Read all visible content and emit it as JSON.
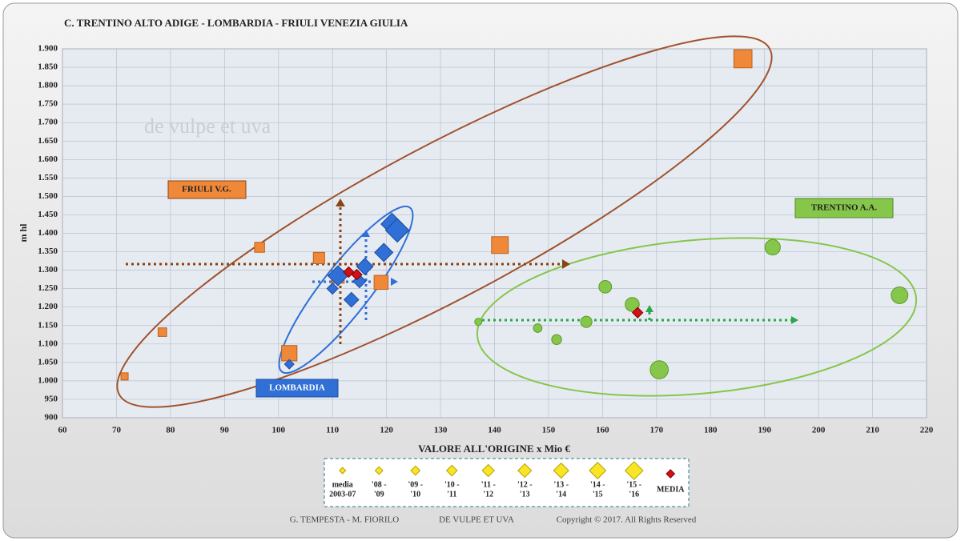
{
  "chart_data": {
    "type": "scatter",
    "title": "C.  TRENTINO ALTO ADIGE - LOMBARDIA - FRIULI VENEZIA GIULIA",
    "x_label": "VALORE ALL'ORIGINE  x Mio €",
    "y_label": "m hl",
    "watermark": "de vulpe et uva",
    "xlim": [
      60,
      220
    ],
    "xticks": [
      60,
      70,
      80,
      90,
      100,
      110,
      120,
      130,
      140,
      150,
      160,
      170,
      180,
      190,
      200,
      210,
      220
    ],
    "ylim": [
      900,
      1900
    ],
    "yticks": [
      900,
      {
        "value": 950,
        "label": "950"
      },
      {
        "value": 1000,
        "label": "1.000"
      },
      {
        "value": 1050,
        "label": "1.050"
      },
      {
        "value": 1100,
        "label": "1.100"
      },
      {
        "value": 1150,
        "label": "1.150"
      },
      {
        "value": 1200,
        "label": "1.200"
      },
      {
        "value": 1250,
        "label": "1.250"
      },
      {
        "value": 1300,
        "label": "1.300"
      },
      {
        "value": 1350,
        "label": "1.350"
      },
      {
        "value": 1400,
        "label": "1.400"
      },
      {
        "value": 1450,
        "label": "1.450"
      },
      {
        "value": 1500,
        "label": "1.500"
      },
      {
        "value": 1550,
        "label": "1.550"
      },
      {
        "value": 1600,
        "label": "1.600"
      },
      {
        "value": 1650,
        "label": "1.650"
      },
      {
        "value": 1700,
        "label": "1.700"
      },
      {
        "value": 1750,
        "label": "1.750"
      },
      {
        "value": 1800,
        "label": "1.800"
      },
      {
        "value": 1850,
        "label": "1.850"
      },
      {
        "value": 1900,
        "label": "1.900"
      }
    ],
    "grid": true,
    "series": [
      {
        "name": "FRIULI V.G.",
        "color": "#f0883a",
        "marker": "square",
        "x": [
          71.5,
          78.5,
          96.5,
          107.5,
          111,
          119,
          102,
          141,
          186
        ],
        "values": [
          1012,
          1132,
          1362,
          1333,
          1282,
          1267,
          1075,
          1368,
          1873
        ]
      },
      {
        "name": "LOMBARDIA",
        "color": "#2f6fd6",
        "marker": "diamond",
        "x": [
          102,
          110,
          115,
          113.5,
          116,
          119.5,
          111,
          121,
          122
        ],
        "values": [
          1045,
          1250,
          1270,
          1220,
          1310,
          1348,
          1285,
          1425,
          1408
        ]
      },
      {
        "name": "TRENTINO A.A.",
        "color": "#86c64a",
        "marker": "circle",
        "x": [
          137,
          148,
          151.5,
          157,
          160.5,
          165.5,
          191.5,
          215,
          170.5
        ],
        "values": [
          1160,
          1143,
          1112,
          1160,
          1255,
          1207,
          1362,
          1232,
          1030
        ]
      },
      {
        "name": "MEDIA",
        "color": "#d0101b",
        "marker": "diamond",
        "x": [
          113,
          114.5,
          166.5
        ],
        "values": [
          1295,
          1288,
          1185
        ]
      }
    ],
    "legend_periods": [
      [
        "media",
        "2003-07"
      ],
      [
        "'08 -",
        "'09"
      ],
      [
        "'09 -",
        "'10"
      ],
      [
        "'10 -",
        "'11"
      ],
      [
        "'11 -",
        "'12"
      ],
      [
        "'12 -",
        "'13"
      ],
      [
        "'13 -",
        "'14"
      ],
      [
        "'14 -",
        "'15"
      ],
      [
        "'15 -",
        "'16"
      ]
    ],
    "footer": [
      "G. TEMPESTA - M. FIORILO",
      "DE VULPE ET UVA",
      "Copyright © 2017. All Rights Reserved"
    ]
  }
}
